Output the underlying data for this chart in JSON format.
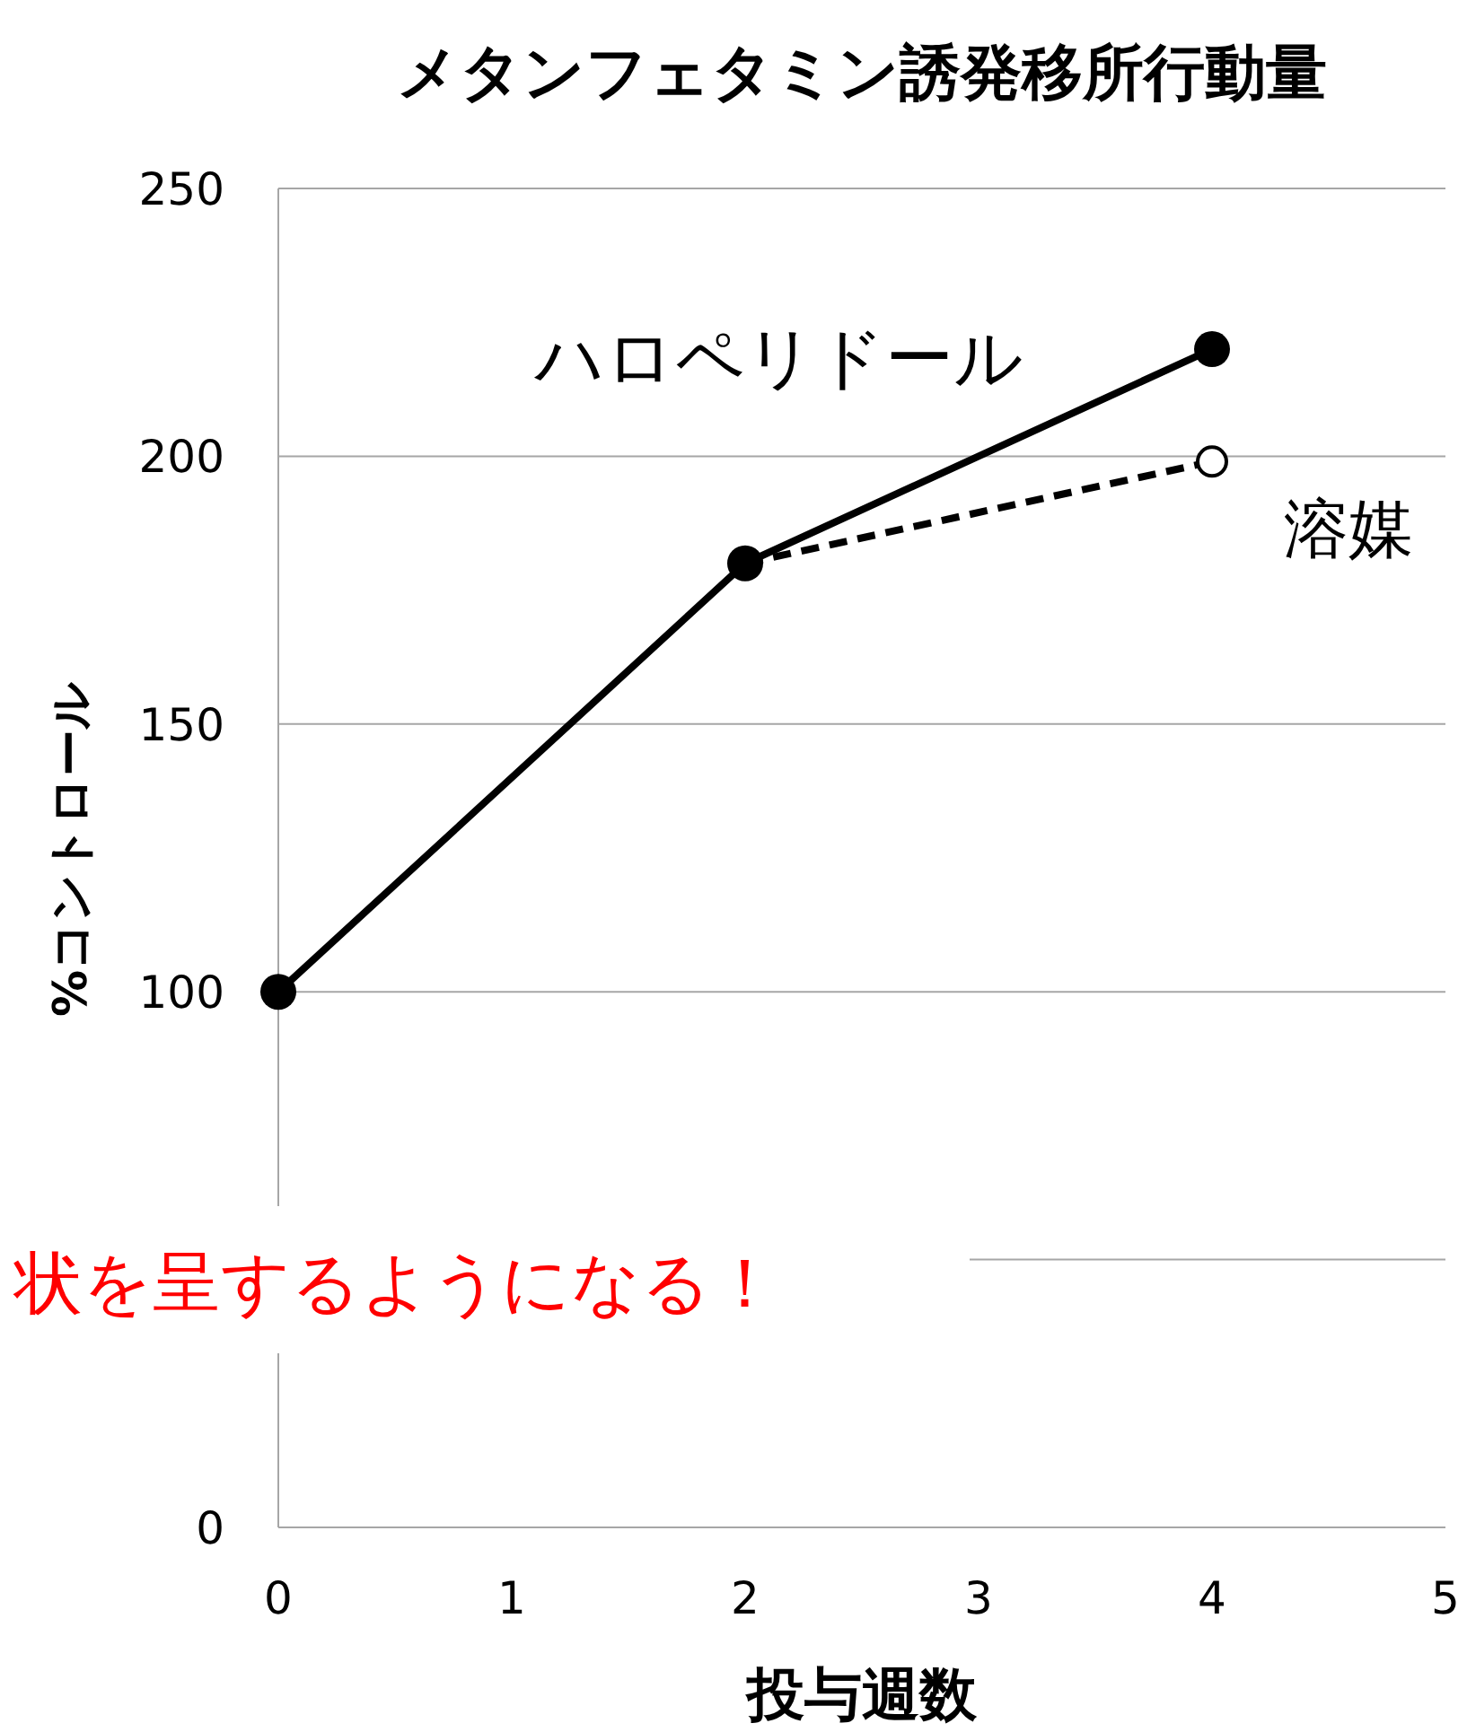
{
  "chart_data": {
    "type": "line",
    "title": "メタンフェタミン誘発移所行動量",
    "xlabel": "投与週数",
    "ylabel": "%コントロール",
    "xlim": [
      0,
      5
    ],
    "xticks": [
      0,
      1,
      2,
      3,
      4,
      5
    ],
    "ylim": [
      0,
      250
    ],
    "yticks": [
      0,
      {
        "value": 50,
        "label": null
      },
      100,
      150,
      200,
      250
    ],
    "grid": "y",
    "marker": "circle",
    "series": [
      {
        "name": "ハロペリドール",
        "color": "#000000",
        "x": [
          0,
          2,
          4
        ],
        "values": [
          100,
          180,
          220
        ],
        "line_style": "solid"
      },
      {
        "name": "溶媒",
        "color": "#000000",
        "x": [
          2,
          4
        ],
        "values": [
          180,
          199
        ],
        "line_style": "dashed"
      }
    ],
    "annotations": [
      "状を呈するようになる！"
    ]
  }
}
